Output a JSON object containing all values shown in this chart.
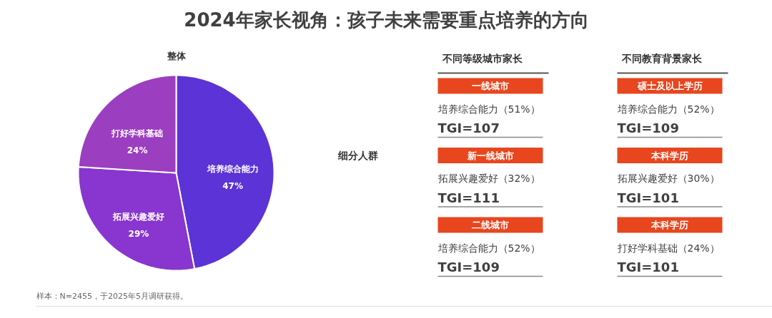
{
  "chart_data": [
    {
      "type": "pie",
      "title": "2024年家长视角：孩子未来需要重点培养的方向",
      "subtitle": "整体",
      "categories": [
        "培养综合能力",
        "拓展兴趣爱好",
        "打好学科基础"
      ],
      "values": [
        47,
        29,
        24
      ],
      "colors": [
        "#5b33d6",
        "#8836cf",
        "#9b3ec0"
      ],
      "value_labels": [
        "47%",
        "29%",
        "24%"
      ],
      "annotations": [
        "细分人群",
        "样本：N=2455，于2025年5月调研获得。"
      ]
    },
    {
      "type": "other",
      "title": "不同等级城市家长",
      "annotations": [
        "一线城市",
        "培养综合能力（51%）",
        "TGI=107",
        "新一线城市",
        "拓展兴趣爱好（32%）",
        "TGI=111",
        "二线城市",
        "培养综合能力（52%）",
        "TGI=109"
      ]
    },
    {
      "type": "other",
      "title": "不同教育背景家长",
      "annotations": [
        "硕士及以上学历",
        "培养综合能力（52%）",
        "TGI=109",
        "本科学历",
        "拓展兴趣爱好（30%）",
        "TGI=101",
        "本科学历",
        "打好学科基础（24%）",
        "TGI=101"
      ]
    }
  ]
}
